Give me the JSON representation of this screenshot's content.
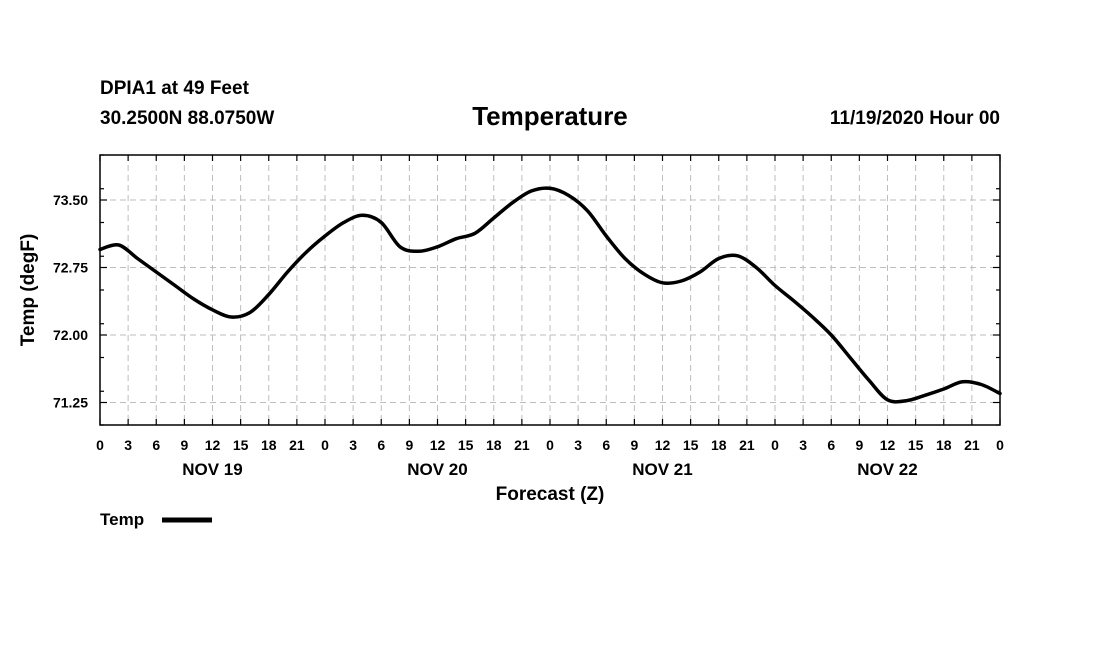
{
  "header": {
    "station": "DPIA1 at 49 Feet",
    "coords": "30.2500N 88.0750W",
    "datetime": "11/19/2020 Hour 00"
  },
  "chart_data": {
    "type": "line",
    "title": "Temperature",
    "xlabel": "Forecast (Z)",
    "ylabel": "Temp (degF)",
    "ylim": [
      71.0,
      74.0
    ],
    "xlim": [
      0,
      96
    ],
    "grid": true,
    "legend": {
      "placement": "bottom-left",
      "entries": [
        "Temp"
      ]
    },
    "y_ticks": [
      71.25,
      72.0,
      72.75,
      73.5
    ],
    "y_tick_labels": [
      "71.25",
      "72.00",
      "72.75",
      "73.50"
    ],
    "x_ticks": [
      0,
      3,
      6,
      9,
      12,
      15,
      18,
      21,
      24,
      27,
      30,
      33,
      36,
      39,
      42,
      45,
      48,
      51,
      54,
      57,
      60,
      63,
      66,
      69,
      72,
      75,
      78,
      81,
      84,
      87,
      90,
      93,
      96
    ],
    "x_tick_labels": [
      "0",
      "3",
      "6",
      "9",
      "12",
      "15",
      "18",
      "21",
      "0",
      "3",
      "6",
      "9",
      "12",
      "15",
      "18",
      "21",
      "0",
      "3",
      "6",
      "9",
      "12",
      "15",
      "18",
      "21",
      "0",
      "3",
      "6",
      "9",
      "12",
      "15",
      "18",
      "21",
      "0"
    ],
    "day_labels": [
      {
        "label": "NOV 19",
        "hour": 12
      },
      {
        "label": "NOV 20",
        "hour": 36
      },
      {
        "label": "NOV 21",
        "hour": 60
      },
      {
        "label": "NOV 22",
        "hour": 84
      }
    ],
    "series": [
      {
        "name": "Temp",
        "x": [
          0,
          2,
          4,
          6,
          8,
          10,
          12,
          14,
          16,
          18,
          20,
          22,
          24,
          26,
          28,
          30,
          32,
          34,
          36,
          38,
          40,
          42,
          44,
          46,
          48,
          50,
          52,
          54,
          56,
          58,
          60,
          62,
          64,
          66,
          68,
          70,
          72,
          74,
          76,
          78,
          80,
          82,
          84,
          86,
          88,
          90,
          92,
          94,
          96
        ],
        "values": [
          72.95,
          73.0,
          72.85,
          72.7,
          72.55,
          72.4,
          72.28,
          72.2,
          72.25,
          72.45,
          72.7,
          72.92,
          73.1,
          73.25,
          73.33,
          73.25,
          72.98,
          72.93,
          72.98,
          73.07,
          73.13,
          73.3,
          73.47,
          73.6,
          73.63,
          73.55,
          73.38,
          73.1,
          72.85,
          72.68,
          72.58,
          72.6,
          72.7,
          72.85,
          72.88,
          72.75,
          72.55,
          72.38,
          72.2,
          72.0,
          71.75,
          71.5,
          71.28,
          71.27,
          71.33,
          71.4,
          71.48,
          71.45,
          71.35
        ]
      }
    ]
  }
}
